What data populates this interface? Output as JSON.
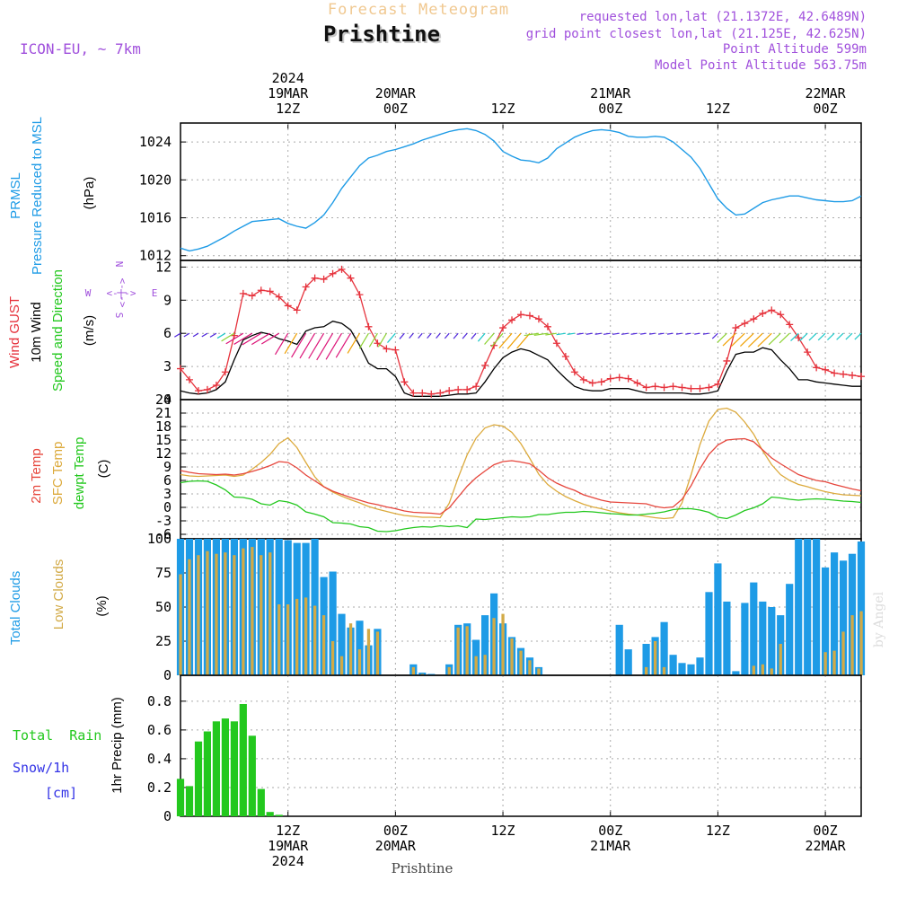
{
  "header": {
    "product": "Forecast Meteogram",
    "location": "Prishtine",
    "model": "ICON-EU, ~ 7km",
    "requested": "requested lon,lat (21.1372E, 42.6489N)",
    "grid_point": "grid point closest lon,lat (21.125E, 42.625N)",
    "point_altitude": "Point Altitude 599m",
    "model_altitude": "Model Point Altitude 563.75m"
  },
  "footer": {
    "location": "Prishtine",
    "credit": "by Angel"
  },
  "colors": {
    "pressure": "#1e9be6",
    "gust": "#e6323c",
    "wind": "#000000",
    "temp": "#e6463c",
    "sfc": "#dcaa3c",
    "dew": "#23c81e",
    "total_cloud": "#1e9be6",
    "low_cloud": "#d2aa46",
    "rain": "#23c81e",
    "snow": "#3232e6",
    "label_purple": "#a050dc"
  },
  "chart_data": [
    {
      "type": "line",
      "panel": "pressure",
      "title": "PRMSL Pressure Reduced to MSL",
      "ylabel": "(hPa)",
      "ylim": [
        1011.5,
        1026
      ],
      "yticks": [
        1012,
        1016,
        1020,
        1024
      ],
      "x_hours": [
        0,
        1,
        2,
        3,
        4,
        5,
        6,
        7,
        8,
        9,
        10,
        11,
        12,
        13,
        14,
        15,
        16,
        17,
        18,
        19,
        20,
        21,
        22,
        23,
        24,
        25,
        26,
        27,
        28,
        29,
        30,
        31,
        32,
        33,
        34,
        35,
        36,
        37,
        38,
        39,
        40,
        41,
        42,
        43,
        44,
        45,
        46,
        47,
        48,
        49,
        50,
        51,
        52,
        53,
        54,
        55,
        56,
        57,
        58,
        59,
        60,
        61,
        62,
        63,
        64,
        65,
        66,
        67,
        68,
        69,
        70,
        71,
        72,
        73,
        74,
        75,
        76
      ],
      "values": [
        1012.8,
        1012.5,
        1012.7,
        1013,
        1013.5,
        1014,
        1014.6,
        1015.1,
        1015.6,
        1015.7,
        1015.8,
        1015.9,
        1015.4,
        1015.1,
        1014.9,
        1015.5,
        1016.3,
        1017.6,
        1019.1,
        1020.3,
        1021.5,
        1022.3,
        1022.6,
        1023,
        1023.2,
        1023.5,
        1023.8,
        1024.2,
        1024.5,
        1024.8,
        1025.1,
        1025.3,
        1025.4,
        1025.2,
        1024.8,
        1024.1,
        1023,
        1022.5,
        1022.1,
        1022,
        1021.8,
        1022.3,
        1023.3,
        1023.9,
        1024.5,
        1024.9,
        1025.2,
        1025.3,
        1025.2,
        1025,
        1024.6,
        1024.5,
        1024.5,
        1024.6,
        1024.5,
        1024,
        1023.2,
        1022.4,
        1021.2,
        1019.6,
        1018,
        1017,
        1016.3,
        1016.4,
        1017,
        1017.6,
        1017.9,
        1018.1,
        1018.3,
        1018.3,
        1018.1,
        1017.9,
        1017.8,
        1017.7,
        1017.7,
        1017.8,
        1018.3
      ]
    },
    {
      "type": "line",
      "panel": "wind",
      "title": "Wind GUST / 10m Wind Speed and Direction",
      "ylabel": "(m/s)",
      "ylim": [
        0,
        12.6
      ],
      "yticks": [
        0,
        3,
        6,
        9,
        12
      ],
      "compass": {
        "north": "N",
        "east": "E",
        "west": "W",
        "south": "S",
        "center": "<-|->"
      },
      "x_hours": [
        0,
        1,
        2,
        3,
        4,
        5,
        6,
        7,
        8,
        9,
        10,
        11,
        12,
        13,
        14,
        15,
        16,
        17,
        18,
        19,
        20,
        21,
        22,
        23,
        24,
        25,
        26,
        27,
        28,
        29,
        30,
        31,
        32,
        33,
        34,
        35,
        36,
        37,
        38,
        39,
        40,
        41,
        42,
        43,
        44,
        45,
        46,
        47,
        48,
        49,
        50,
        51,
        52,
        53,
        54,
        55,
        56,
        57,
        58,
        59,
        60,
        61,
        62,
        63,
        64,
        65,
        66,
        67,
        68,
        69,
        70,
        71,
        72,
        73,
        74,
        75,
        76
      ],
      "series": [
        {
          "name": "Wind GUST",
          "values": [
            2.8,
            1.8,
            0.8,
            0.9,
            1.3,
            2.5,
            5.8,
            9.6,
            9.4,
            9.9,
            9.8,
            9.3,
            8.5,
            8.1,
            10.2,
            11,
            10.9,
            11.4,
            11.8,
            11,
            9.5,
            6.6,
            5.1,
            4.6,
            4.5,
            1.6,
            0.6,
            0.6,
            0.5,
            0.6,
            0.8,
            0.9,
            0.9,
            1.2,
            3.1,
            4.9,
            6.5,
            7.2,
            7.7,
            7.6,
            7.3,
            6.6,
            5.1,
            3.9,
            2.5,
            1.8,
            1.5,
            1.6,
            1.9,
            2,
            1.9,
            1.5,
            1.1,
            1.2,
            1.1,
            1.2,
            1.1,
            1,
            1,
            1.1,
            1.4,
            3.5,
            6.5,
            6.9,
            7.3,
            7.8,
            8.1,
            7.7,
            6.8,
            5.6,
            4.3,
            2.9,
            2.7,
            2.4,
            2.3,
            2.2,
            2.1
          ]
        },
        {
          "name": "10m Wind",
          "values": [
            0.8,
            0.6,
            0.5,
            0.6,
            0.9,
            1.6,
            3.6,
            5.4,
            5.8,
            6.1,
            5.9,
            5.5,
            5.3,
            5,
            6.2,
            6.5,
            6.6,
            7.1,
            6.9,
            6.3,
            4.9,
            3.3,
            2.8,
            2.8,
            2.1,
            0.6,
            0.3,
            0.3,
            0.3,
            0.3,
            0.4,
            0.5,
            0.5,
            0.6,
            1.6,
            2.8,
            3.8,
            4.3,
            4.6,
            4.4,
            4,
            3.6,
            2.7,
            1.9,
            1.2,
            0.9,
            0.8,
            0.8,
            1,
            1,
            1,
            0.8,
            0.6,
            0.6,
            0.6,
            0.6,
            0.6,
            0.5,
            0.5,
            0.6,
            0.8,
            2.6,
            4.1,
            4.3,
            4.3,
            4.7,
            4.5,
            3.6,
            2.8,
            1.8,
            1.8,
            1.6,
            1.5,
            1.4,
            1.3,
            1.2,
            1.2
          ]
        }
      ]
    },
    {
      "type": "line",
      "panel": "temperature",
      "title": "2m Temp / SFC Temp / dewpt Temp",
      "ylabel": "(C)",
      "ylim": [
        -7,
        24
      ],
      "yticks": [
        -6,
        -3,
        0,
        3,
        6,
        9,
        12,
        15,
        18,
        21,
        24
      ],
      "x_hours": [
        0,
        1,
        2,
        3,
        4,
        5,
        6,
        7,
        8,
        9,
        10,
        11,
        12,
        13,
        14,
        15,
        16,
        17,
        18,
        19,
        20,
        21,
        22,
        23,
        24,
        25,
        26,
        27,
        28,
        29,
        30,
        31,
        32,
        33,
        34,
        35,
        36,
        37,
        38,
        39,
        40,
        41,
        42,
        43,
        44,
        45,
        46,
        47,
        48,
        49,
        50,
        51,
        52,
        53,
        54,
        55,
        56,
        57,
        58,
        59,
        60,
        61,
        62,
        63,
        64,
        65,
        66,
        67,
        68,
        69,
        70,
        71,
        72,
        73,
        74,
        75,
        76
      ],
      "series": [
        {
          "name": "2m Temp",
          "values": [
            8.2,
            7.8,
            7.5,
            7.4,
            7.3,
            7.4,
            7.2,
            7.5,
            8,
            8.6,
            9.3,
            10.2,
            10,
            8.8,
            7.2,
            5.9,
            4.6,
            3.6,
            2.9,
            2.2,
            1.6,
            1,
            0.6,
            0.1,
            -0.3,
            -0.8,
            -1.1,
            -1.2,
            -1.3,
            -1.5,
            -0.1,
            2.3,
            4.7,
            6.6,
            8.1,
            9.5,
            10.2,
            10.4,
            10.1,
            9.7,
            8.3,
            6.6,
            5.4,
            4.5,
            3.8,
            2.8,
            2.2,
            1.6,
            1.2,
            1.1,
            1,
            0.9,
            0.8,
            0.2,
            -0.1,
            0.1,
            1.8,
            4.8,
            8.6,
            11.8,
            13.9,
            15,
            15.2,
            15.3,
            14.6,
            12.8,
            11,
            9.7,
            8.5,
            7.3,
            6.6,
            6,
            5.7,
            5.1,
            4.6,
            4.1,
            3.7
          ]
        },
        {
          "name": "SFC Temp",
          "values": [
            7.3,
            7,
            6.9,
            7,
            7.1,
            7.2,
            6.9,
            7.2,
            8.5,
            10,
            11.8,
            14.2,
            15.5,
            13.3,
            10,
            6.8,
            4.6,
            3.4,
            2.5,
            1.7,
            1,
            0.2,
            -0.4,
            -0.9,
            -1.4,
            -1.8,
            -2,
            -2.2,
            -2.2,
            -2.3,
            0.9,
            6.6,
            11.7,
            15.4,
            17.7,
            18.4,
            18.1,
            16.7,
            14.2,
            10.9,
            7.4,
            5.1,
            3.6,
            2.4,
            1.5,
            0.7,
            0.1,
            -0.3,
            -0.8,
            -1.2,
            -1.5,
            -1.7,
            -2,
            -2.3,
            -2.5,
            -2.3,
            1,
            7.2,
            14,
            19.2,
            21.8,
            22.1,
            21.2,
            19,
            16.3,
            12.6,
            9.5,
            7.3,
            6,
            5.1,
            4.6,
            4,
            3.5,
            3.1,
            2.8,
            2.7,
            2.6
          ]
        },
        {
          "name": "dewpt Temp",
          "values": [
            5.5,
            5.8,
            5.9,
            5.8,
            5,
            3.9,
            2.3,
            2.2,
            1.8,
            0.8,
            0.5,
            1.5,
            1.2,
            0.5,
            -1,
            -1.5,
            -2.1,
            -3.4,
            -3.5,
            -3.7,
            -4.3,
            -4.5,
            -5.3,
            -5.4,
            -5.2,
            -4.8,
            -4.5,
            -4.3,
            -4.4,
            -4.1,
            -4.3,
            -4.1,
            -4.5,
            -2.6,
            -2.7,
            -2.5,
            -2.3,
            -2.1,
            -2.2,
            -2.1,
            -1.6,
            -1.6,
            -1.3,
            -1.1,
            -1.1,
            -0.9,
            -1,
            -1.2,
            -1.4,
            -1.5,
            -1.7,
            -1.7,
            -1.5,
            -1.3,
            -1,
            -0.5,
            -0.3,
            -0.3,
            -0.6,
            -1.1,
            -2.2,
            -2.5,
            -1.7,
            -0.7,
            -0.1,
            0.8,
            2.3,
            2.1,
            1.8,
            1.6,
            1.8,
            1.9,
            1.8,
            1.6,
            1.4,
            1.3,
            1.1
          ]
        }
      ]
    },
    {
      "type": "bar",
      "panel": "clouds",
      "title": "Total Clouds / Low Clouds",
      "ylabel": "(%)",
      "ylim": [
        0,
        100
      ],
      "yticks": [
        0,
        25,
        50,
        75,
        100
      ],
      "x_hours": [
        0,
        1,
        2,
        3,
        4,
        5,
        6,
        7,
        8,
        9,
        10,
        11,
        12,
        13,
        14,
        15,
        16,
        17,
        18,
        19,
        20,
        21,
        22,
        23,
        24,
        25,
        26,
        27,
        28,
        29,
        30,
        31,
        32,
        33,
        34,
        35,
        36,
        37,
        38,
        39,
        40,
        41,
        42,
        43,
        44,
        45,
        46,
        47,
        48,
        49,
        50,
        51,
        52,
        53,
        54,
        55,
        56,
        57,
        58,
        59,
        60,
        61,
        62,
        63,
        64,
        65,
        66,
        67,
        68,
        69,
        70,
        71,
        72,
        73,
        74,
        75,
        76
      ],
      "series": [
        {
          "name": "Total Clouds",
          "values": [
            100,
            100,
            100,
            100,
            100,
            100,
            100,
            100,
            100,
            100,
            100,
            100,
            99,
            97,
            97,
            100,
            72,
            76,
            45,
            35,
            40,
            22,
            34,
            0,
            0,
            0,
            8,
            2,
            1,
            0,
            8,
            37,
            38,
            26,
            44,
            60,
            38,
            28,
            20,
            13,
            6,
            0,
            0,
            0,
            0,
            0,
            0,
            0,
            0,
            37,
            19,
            0,
            23,
            28,
            39,
            15,
            9,
            8,
            13,
            61,
            82,
            54,
            3,
            53,
            68,
            54,
            50,
            44,
            67,
            100,
            100,
            100,
            79,
            90,
            84,
            89,
            98
          ]
        },
        {
          "name": "Low Clouds",
          "values": [
            74,
            85,
            88,
            91,
            89,
            90,
            88,
            93,
            94,
            88,
            90,
            52,
            52,
            56,
            57,
            51,
            44,
            25,
            14,
            38,
            19,
            34,
            32,
            0,
            0,
            0,
            6,
            1,
            0,
            0,
            6,
            35,
            36,
            14,
            15,
            42,
            45,
            27,
            18,
            11,
            5,
            0,
            0,
            0,
            0,
            0,
            0,
            0,
            0,
            0,
            0,
            0,
            6,
            25,
            6,
            0,
            0,
            0,
            0,
            0,
            0,
            0,
            0,
            0,
            7,
            8,
            5,
            23,
            0,
            0,
            0,
            0,
            17,
            18,
            32,
            44,
            47
          ]
        }
      ]
    },
    {
      "type": "bar",
      "panel": "precip",
      "title": "Total Rain / Snow/1h [cm]",
      "ylabel": "1hr Precip (mm)",
      "ylim": [
        0,
        0.98
      ],
      "yticks": [
        0,
        0.2,
        0.4,
        0.6,
        0.8
      ],
      "ytick_labels": [
        "0",
        "0.2",
        "0.4",
        "0.6",
        "0.8"
      ],
      "x_hours": [
        0,
        1,
        2,
        3,
        4,
        5,
        6,
        7,
        8,
        9,
        10,
        11,
        12,
        13
      ],
      "series": [
        {
          "name": "Total Rain",
          "values": [
            0.26,
            0.21,
            0.52,
            0.59,
            0.66,
            0.68,
            0.66,
            0.78,
            0.56,
            0.19,
            0.03,
            0.01,
            0,
            0
          ]
        },
        {
          "name": "Snow/1h",
          "values": [
            0,
            0,
            0,
            0,
            0,
            0,
            0,
            0,
            0,
            0,
            0,
            0,
            0,
            0
          ]
        }
      ]
    }
  ],
  "time_axis": {
    "top": [
      {
        "hour": 12,
        "lines": [
          "2024",
          "19MAR",
          "12Z"
        ]
      },
      {
        "hour": 24,
        "lines": [
          "20MAR",
          "00Z"
        ]
      },
      {
        "hour": 36,
        "lines": [
          "12Z"
        ]
      },
      {
        "hour": 48,
        "lines": [
          "21MAR",
          "00Z"
        ]
      },
      {
        "hour": 60,
        "lines": [
          "12Z"
        ]
      },
      {
        "hour": 72,
        "lines": [
          "22MAR",
          "00Z"
        ]
      }
    ],
    "bottom": [
      {
        "hour": 12,
        "lines": [
          "12Z",
          "19MAR",
          "2024"
        ]
      },
      {
        "hour": 24,
        "lines": [
          "00Z",
          "20MAR"
        ]
      },
      {
        "hour": 36,
        "lines": [
          "12Z"
        ]
      },
      {
        "hour": 48,
        "lines": [
          "00Z",
          "21MAR"
        ]
      },
      {
        "hour": 60,
        "lines": [
          "12Z"
        ]
      },
      {
        "hour": 72,
        "lines": [
          "00Z",
          "22MAR"
        ]
      }
    ]
  },
  "labels": {
    "pressure": {
      "l1": "PRMSL",
      "l2": "Pressure Reduced to MSL",
      "unit": "(hPa)"
    },
    "wind": {
      "gust": "Wind GUST",
      "wind": "10m Wind",
      "dir": "Speed and Direction",
      "unit": "(m/s)"
    },
    "temp": {
      "t2m": "2m Temp",
      "sfc": "SFC Temp",
      "dew": "dewpt Temp",
      "unit": "(C)"
    },
    "clouds": {
      "total": "Total Clouds",
      "low": "Low Clouds",
      "unit": "(%)"
    },
    "precip": {
      "rain": "Total  Rain",
      "snow": "Snow/1h",
      "cm": "[cm]",
      "unit": "1hr Precip (mm)"
    }
  }
}
